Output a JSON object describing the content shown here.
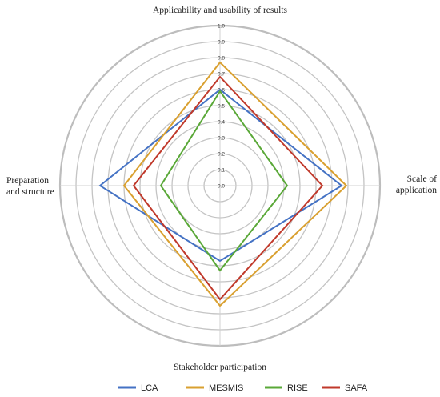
{
  "chart_data": {
    "type": "radar",
    "axes": [
      {
        "label_lines": [
          "Applicability and usability of results"
        ]
      },
      {
        "label_lines": [
          "Scale of",
          "application"
        ]
      },
      {
        "label_lines": [
          "Stakeholder participation"
        ]
      },
      {
        "label_lines": [
          "Preparation",
          "and structure"
        ]
      }
    ],
    "ticks": [
      "0.0",
      "0.1",
      "0.2",
      "0.3",
      "0.4",
      "0.5",
      "0.6",
      "0.7",
      "0.8",
      "0.9",
      "1.0"
    ],
    "rlim": [
      0,
      1
    ],
    "grid": true,
    "legend_position": "bottom",
    "series": [
      {
        "name": "LCA",
        "color": "#4472c4",
        "values": [
          0.6,
          0.76,
          0.47,
          0.75
        ]
      },
      {
        "name": "MESMIS",
        "color": "#d9a030",
        "values": [
          0.77,
          0.79,
          0.75,
          0.6
        ]
      },
      {
        "name": "RISE",
        "color": "#5aa838",
        "values": [
          0.59,
          0.42,
          0.53,
          0.37
        ]
      },
      {
        "name": "SAFA",
        "color": "#c0392b",
        "values": [
          0.68,
          0.64,
          0.71,
          0.54
        ]
      }
    ]
  }
}
